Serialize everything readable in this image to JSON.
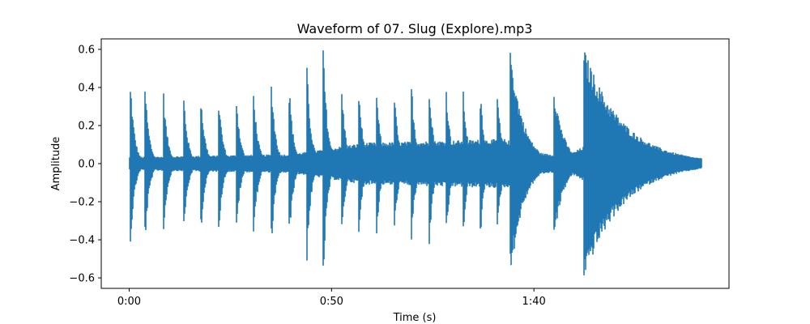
{
  "chart_data": {
    "type": "line",
    "title": "Waveform of 07. Slug (Explore).mp3",
    "xlabel": "Time (s)",
    "ylabel": "Amplitude",
    "xlim": [
      -6.9,
      148.2
    ],
    "ylim": [
      -0.655,
      0.655
    ],
    "x_ticks": [
      {
        "value": 0,
        "label": "0:00"
      },
      {
        "value": 50,
        "label": "0:50"
      },
      {
        "value": 100,
        "label": "1:40"
      }
    ],
    "y_ticks": [
      {
        "value": 0.6,
        "label": "0.6"
      },
      {
        "value": 0.4,
        "label": "0.4"
      },
      {
        "value": 0.2,
        "label": "0.2"
      },
      {
        "value": 0.0,
        "label": "0.0"
      },
      {
        "value": -0.2,
        "label": "−0.2"
      },
      {
        "value": -0.4,
        "label": "−0.4"
      },
      {
        "value": -0.6,
        "label": "−0.6"
      }
    ],
    "grid": false,
    "series_color": "#1f77b4",
    "duration": 141.5,
    "onsets": [
      {
        "t": 0.4,
        "amp": 0.41,
        "decay": 1.0
      },
      {
        "t": 4.0,
        "amp": 0.4,
        "decay": 1.0
      },
      {
        "t": 8.5,
        "amp": 0.38,
        "decay": 1.0
      },
      {
        "t": 13.5,
        "amp": 0.37,
        "decay": 1.0
      },
      {
        "t": 17.8,
        "amp": 0.35,
        "decay": 1.0
      },
      {
        "t": 22.2,
        "amp": 0.34,
        "decay": 1.0
      },
      {
        "t": 26.5,
        "amp": 0.37,
        "decay": 1.0
      },
      {
        "t": 30.8,
        "amp": 0.38,
        "decay": 1.0
      },
      {
        "t": 35.2,
        "amp": 0.43,
        "decay": 1.0
      },
      {
        "t": 39.6,
        "amp": 0.4,
        "decay": 1.0
      },
      {
        "t": 43.9,
        "amp": 0.53,
        "decay": 1.0
      },
      {
        "t": 48.0,
        "amp": 0.6,
        "decay": 1.0
      },
      {
        "t": 52.5,
        "amp": 0.42,
        "decay": 1.0
      },
      {
        "t": 56.8,
        "amp": 0.39,
        "decay": 1.0
      },
      {
        "t": 61.2,
        "amp": 0.37,
        "decay": 1.0
      },
      {
        "t": 65.5,
        "amp": 0.39,
        "decay": 1.0
      },
      {
        "t": 69.8,
        "amp": 0.42,
        "decay": 1.0
      },
      {
        "t": 74.2,
        "amp": 0.43,
        "decay": 1.0
      },
      {
        "t": 78.4,
        "amp": 0.4,
        "decay": 1.0
      },
      {
        "t": 82.6,
        "amp": 0.38,
        "decay": 1.0
      },
      {
        "t": 86.9,
        "amp": 0.36,
        "decay": 1.0
      },
      {
        "t": 91.0,
        "amp": 0.38,
        "decay": 1.0
      },
      {
        "t": 94.3,
        "amp": 0.59,
        "decay": 3.2
      },
      {
        "t": 105.0,
        "amp": 0.4,
        "decay": 2.4
      },
      {
        "t": 112.5,
        "amp": 0.6,
        "decay": 9.5
      }
    ],
    "sustain": [
      {
        "t": 0,
        "amp": 0.035
      },
      {
        "t": 40,
        "amp": 0.05
      },
      {
        "t": 58,
        "amp": 0.11
      },
      {
        "t": 93,
        "amp": 0.13
      },
      {
        "t": 100,
        "amp": 0.06
      },
      {
        "t": 108,
        "amp": 0.04
      },
      {
        "t": 118,
        "amp": 0.16
      },
      {
        "t": 125,
        "amp": 0.11
      },
      {
        "t": 133,
        "amp": 0.05
      },
      {
        "t": 138,
        "amp": 0.03
      },
      {
        "t": 141.5,
        "amp": 0.005
      }
    ]
  }
}
